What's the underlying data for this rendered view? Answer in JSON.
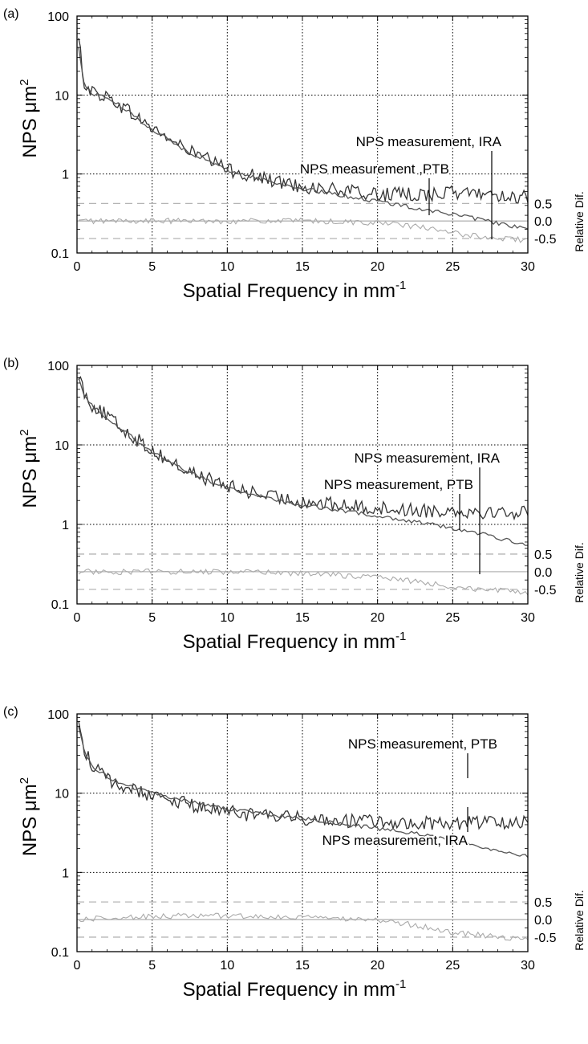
{
  "chart_data": [
    {
      "type": "line",
      "panel_label": "(a)",
      "xlabel": "Spatial Frequency in mm",
      "xlabel_sup": "-1",
      "ylabel": "NPS μm",
      "ylabel_sup": "2",
      "y2label": "Relative Dif.",
      "xlim": [
        0,
        30
      ],
      "ylim": [
        0.1,
        100
      ],
      "yscale": "log",
      "x_ticks": [
        0,
        5,
        10,
        15,
        20,
        25,
        30
      ],
      "x_tick_labels": [
        "0",
        "5",
        "10",
        "15",
        "20",
        "25",
        "30"
      ],
      "y_tick_labels": [
        "100",
        "10",
        "1",
        "0.1"
      ],
      "y2_tick_labels": [
        "0.5",
        "0.0",
        "-0.5"
      ],
      "grid": "dotted vertical and horizontal at major ticks",
      "annotations": [
        "NPS measurement, IRA",
        "NPS measurement ,PTB"
      ],
      "series": [
        {
          "label_ref": "IRA",
          "color": "#333333",
          "type": "noisy measurement",
          "x": [
            0.1,
            0.5,
            1,
            2,
            3,
            5,
            7,
            10,
            13,
            15,
            18,
            20,
            23,
            25,
            27,
            30
          ],
          "y": [
            50,
            14,
            11,
            9.5,
            7.2,
            3.8,
            2.2,
            1.15,
            0.82,
            0.7,
            0.6,
            0.55,
            0.55,
            0.58,
            0.57,
            0.5
          ]
        },
        {
          "label_ref": "PTB",
          "color": "#555555",
          "type": "smooth measurement",
          "x": [
            0.1,
            0.5,
            1,
            2,
            3,
            5,
            7,
            10,
            13,
            15,
            18,
            20,
            23,
            25,
            27,
            30
          ],
          "y": [
            40,
            13,
            10.5,
            9.3,
            7.0,
            3.7,
            2.1,
            1.12,
            0.79,
            0.65,
            0.52,
            0.45,
            0.36,
            0.31,
            0.26,
            0.2
          ]
        },
        {
          "label_ref": "Relative Dif.",
          "color": "#aaaaaa",
          "type": "relative difference (right axis)",
          "x": [
            0,
            5,
            10,
            15,
            20,
            23,
            25,
            27,
            30
          ],
          "y": [
            0.0,
            0.0,
            0.0,
            0.0,
            -0.05,
            -0.18,
            -0.35,
            -0.45,
            -0.55
          ]
        }
      ],
      "reference_lines": [
        0.5,
        0.0,
        -0.5
      ]
    },
    {
      "type": "line",
      "panel_label": "(b)",
      "xlabel": "Spatial Frequency in mm",
      "xlabel_sup": "-1",
      "ylabel": "NPS μm",
      "ylabel_sup": "2",
      "y2label": "Relative Dif.",
      "xlim": [
        0,
        30
      ],
      "ylim": [
        0.1,
        100
      ],
      "yscale": "log",
      "x_ticks": [
        0,
        5,
        10,
        15,
        20,
        25,
        30
      ],
      "x_tick_labels": [
        "0",
        "5",
        "10",
        "15",
        "20",
        "25",
        "30"
      ],
      "y_tick_labels": [
        "100",
        "10",
        "1",
        "0.1"
      ],
      "y2_tick_labels": [
        "0.5",
        "0.0",
        "-0.5"
      ],
      "grid": "dotted vertical and horizontal at major ticks",
      "annotations": [
        "NPS measurement, IRA",
        "NPS measurement, PTB"
      ],
      "series": [
        {
          "label_ref": "IRA",
          "color": "#333333",
          "type": "noisy measurement",
          "x": [
            0.1,
            0.5,
            1,
            2,
            3,
            5,
            7,
            10,
            13,
            15,
            18,
            20,
            23,
            25,
            27,
            30
          ],
          "y": [
            80,
            45,
            32,
            23,
            16,
            8.5,
            5.0,
            3.0,
            2.2,
            1.95,
            1.7,
            1.6,
            1.5,
            1.5,
            1.45,
            1.4
          ]
        },
        {
          "label_ref": "PTB",
          "color": "#555555",
          "type": "smooth measurement",
          "x": [
            0.1,
            0.5,
            1,
            2,
            3,
            5,
            7,
            10,
            13,
            15,
            18,
            20,
            23,
            25,
            27,
            30
          ],
          "y": [
            75,
            42,
            31,
            22,
            15.5,
            8.3,
            4.9,
            2.9,
            2.05,
            1.75,
            1.45,
            1.28,
            1.05,
            0.9,
            0.75,
            0.55
          ]
        },
        {
          "label_ref": "Relative Dif.",
          "color": "#aaaaaa",
          "type": "relative difference (right axis)",
          "x": [
            0,
            5,
            10,
            15,
            20,
            23,
            25,
            27,
            30
          ],
          "y": [
            0.0,
            0.0,
            0.0,
            -0.05,
            -0.15,
            -0.3,
            -0.42,
            -0.5,
            -0.6
          ]
        }
      ],
      "reference_lines": [
        0.5,
        0.0,
        -0.5
      ]
    },
    {
      "type": "line",
      "panel_label": "(c)",
      "xlabel": "Spatial Frequency in mm",
      "xlabel_sup": "-1",
      "ylabel": "NPS μm",
      "ylabel_sup": "2",
      "y2label": "Relative Dif.",
      "xlim": [
        0,
        30
      ],
      "ylim": [
        0.1,
        100
      ],
      "yscale": "log",
      "x_ticks": [
        0,
        5,
        10,
        15,
        20,
        25,
        30
      ],
      "x_tick_labels": [
        "0",
        "5",
        "10",
        "15",
        "20",
        "25",
        "30"
      ],
      "y_tick_labels": [
        "100",
        "10",
        "1",
        "0.1"
      ],
      "y2_tick_labels": [
        "0.5",
        "0.0",
        "-0.5"
      ],
      "grid": "dotted vertical and horizontal at major ticks",
      "annotations": [
        "NPS measurement, PTB",
        "NPS measurement, IRA"
      ],
      "series": [
        {
          "label_ref": "PTB",
          "color": "#333333",
          "type": "noisy measurement",
          "x": [
            0.1,
            0.5,
            1,
            2,
            3,
            5,
            7,
            10,
            13,
            15,
            18,
            20,
            23,
            25,
            27,
            30
          ],
          "y": [
            85,
            35,
            22,
            15,
            12,
            9.5,
            7.5,
            5.8,
            5.0,
            4.8,
            4.5,
            4.3,
            4.2,
            4.2,
            4.3,
            4.3
          ]
        },
        {
          "label_ref": "IRA",
          "color": "#555555",
          "type": "smooth measurement",
          "x": [
            0.1,
            0.5,
            1,
            2,
            3,
            5,
            7,
            10,
            13,
            15,
            18,
            20,
            23,
            25,
            27,
            30
          ],
          "y": [
            70,
            32,
            22,
            16.5,
            13,
            10,
            8.2,
            6.3,
            5.3,
            4.8,
            4.0,
            3.6,
            3.0,
            2.6,
            2.1,
            1.6
          ]
        },
        {
          "label_ref": "Relative Dif.",
          "color": "#aaaaaa",
          "type": "relative difference (right axis)",
          "x": [
            0,
            5,
            10,
            15,
            20,
            23,
            25,
            27,
            30
          ],
          "y": [
            0.0,
            0.1,
            0.1,
            0.05,
            0.0,
            -0.2,
            -0.35,
            -0.45,
            -0.55
          ]
        }
      ],
      "reference_lines": [
        0.5,
        0.0,
        -0.5
      ]
    }
  ]
}
